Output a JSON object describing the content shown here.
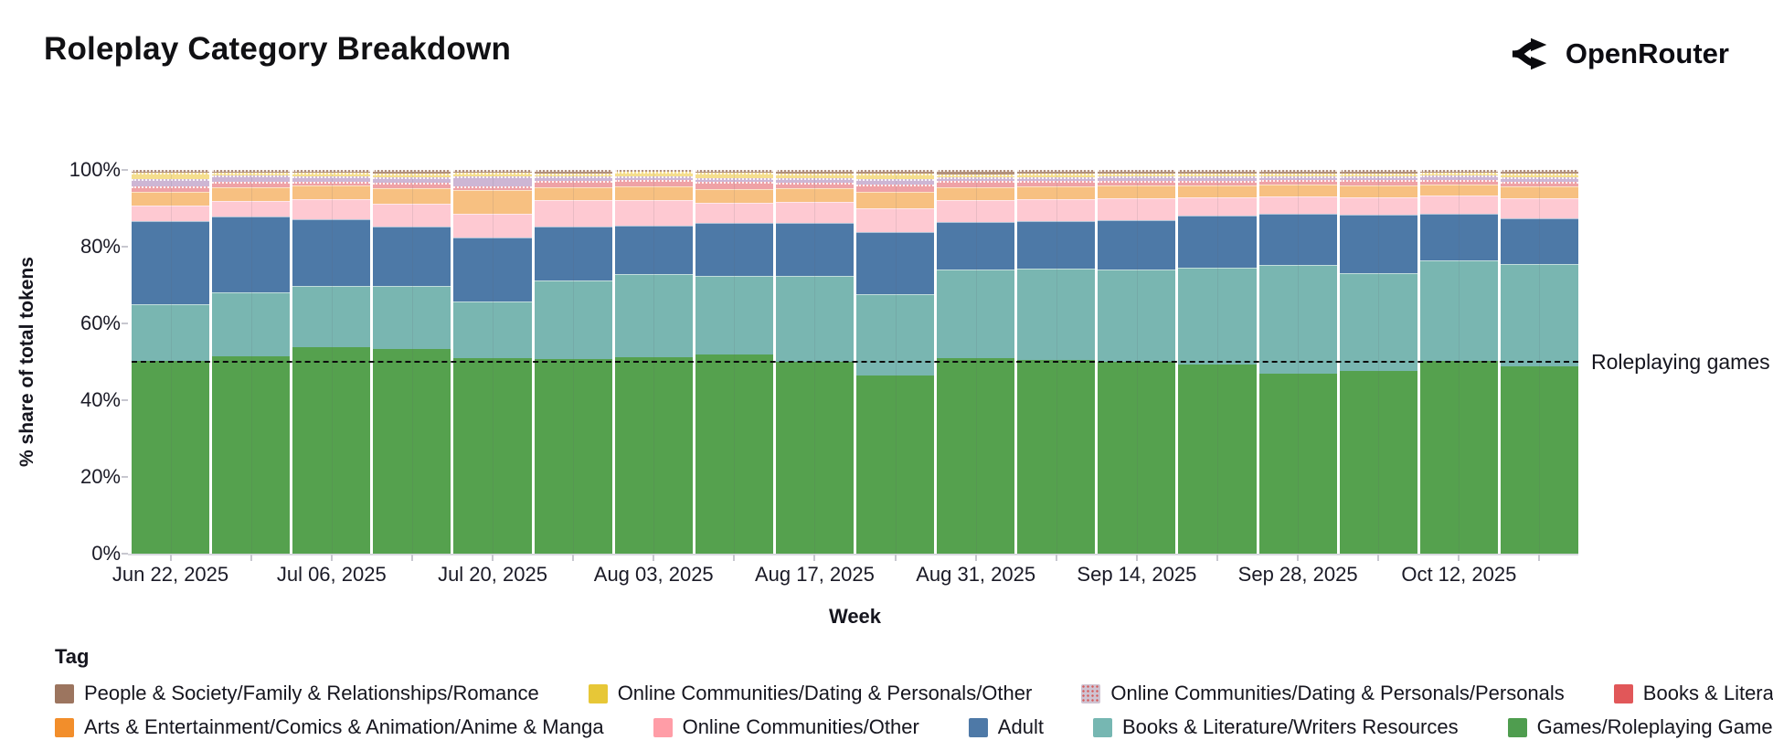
{
  "header": {
    "title": "Roleplay Category Breakdown",
    "brand": "OpenRouter"
  },
  "chart_data": {
    "type": "bar",
    "subtype": "100%-stacked-weekly",
    "title": "Roleplay Category Breakdown",
    "xlabel": "Week",
    "ylabel": "% share of total tokens",
    "ylim": [
      0,
      100
    ],
    "y_ticks": [
      "0%",
      "20%",
      "40%",
      "60%",
      "80%",
      "100%"
    ],
    "x": [
      "Jun 22, 2025",
      "Jun 29, 2025",
      "Jul 06, 2025",
      "Jul 13, 2025",
      "Jul 20, 2025",
      "Jul 27, 2025",
      "Aug 03, 2025",
      "Aug 10, 2025",
      "Aug 17, 2025",
      "Aug 24, 2025",
      "Aug 31, 2025",
      "Sep 07, 2025",
      "Sep 14, 2025",
      "Sep 21, 2025",
      "Sep 28, 2025",
      "Oct 05, 2025",
      "Oct 12, 2025",
      "Oct 19, 2025"
    ],
    "x_tick_labels": [
      "Jun 22, 2025",
      "Jul 06, 2025",
      "Jul 20, 2025",
      "Aug 03, 2025",
      "Aug 17, 2025",
      "Aug 31, 2025",
      "Sep 14, 2025",
      "Sep 28, 2025",
      "Oct 12, 2025"
    ],
    "x_tick_step": 2,
    "grid": "off",
    "legend_position": "bottom",
    "legend_title": "Tag",
    "annotation": {
      "label": "Roleplaying games",
      "y": 50,
      "style": "dashed-black-line"
    },
    "series": [
      {
        "name": "Games/Roleplaying Games",
        "color": "#55a14e",
        "values": [
          50.2,
          51.5,
          53.8,
          53.3,
          51.0,
          50.7,
          51.2,
          51.8,
          50.0,
          46.5,
          51.0,
          50.5,
          50.0,
          49.3,
          46.9,
          47.6,
          50.2,
          48.8
        ]
      },
      {
        "name": "Books & Literature/Writers Resources",
        "color": "#79b6b1",
        "values": [
          14.8,
          16.5,
          16.0,
          16.5,
          14.7,
          20.5,
          21.7,
          20.6,
          22.3,
          21.1,
          23.0,
          23.8,
          24.0,
          25.2,
          28.3,
          25.5,
          26.2,
          26.7
        ]
      },
      {
        "name": "Adult",
        "color": "#4d79a7",
        "values": [
          21.7,
          19.9,
          17.3,
          15.4,
          16.7,
          14.0,
          12.6,
          13.8,
          13.9,
          16.2,
          12.4,
          12.4,
          12.9,
          13.6,
          13.4,
          15.2,
          12.2,
          11.9
        ]
      },
      {
        "name": "Online Communities/Other",
        "color": "#fec9d2",
        "values": [
          4.0,
          4.0,
          5.3,
          6.0,
          6.2,
          6.9,
          6.6,
          5.2,
          5.5,
          6.2,
          5.7,
          5.7,
          5.7,
          4.8,
          4.5,
          4.6,
          4.7,
          5.2
        ]
      },
      {
        "name": "Arts & Entertainment/Comics & Animation/Anime & Manga",
        "color": "#f7c081",
        "values": [
          3.6,
          3.6,
          3.6,
          4.0,
          6.2,
          3.4,
          3.6,
          3.6,
          3.5,
          4.3,
          3.4,
          3.3,
          3.3,
          3.1,
          3.1,
          3.1,
          2.9,
          3.1
        ]
      },
      {
        "name": "Books & Literature/Fan Fiction",
        "color": "#efa2a6",
        "values": [
          1.4,
          1.4,
          0.9,
          1.5,
          0.9,
          1.6,
          1.7,
          1.9,
          1.5,
          1.9,
          1.6,
          1.4,
          1.2,
          1.2,
          1.2,
          1.4,
          1.2,
          1.2
        ]
      },
      {
        "name": "Online Communities/Dating & Personals/Personals",
        "color": "#cdb6d4",
        "values": [
          1.9,
          1.6,
          1.4,
          1.4,
          2.6,
          1.2,
          0.9,
          1.0,
          1.2,
          1.4,
          1.0,
          1.0,
          1.2,
          1.1,
          0.9,
          0.9,
          1.2,
          1.2
        ]
      },
      {
        "name": "Online Communities/Dating & Personals/Other",
        "color": "#f5de8e",
        "values": [
          1.7,
          0.9,
          0.9,
          0.9,
          0.9,
          0.7,
          1.2,
          1.3,
          1.1,
          1.4,
          0.8,
          0.9,
          0.7,
          0.7,
          0.7,
          0.7,
          0.7,
          0.9
        ]
      },
      {
        "name": "People & Society/Family & Relationships/Romance",
        "color": "#b2907c",
        "values": [
          0.7,
          0.6,
          0.8,
          1.0,
          0.8,
          1.0,
          0.5,
          0.8,
          1.0,
          1.0,
          1.1,
          1.0,
          1.0,
          1.0,
          1.0,
          1.0,
          0.7,
          1.0
        ]
      }
    ],
    "legend_rows": [
      [
        {
          "label": "People & Society/Family & Relationships/Romance",
          "color": "#9c755f",
          "pattern": "solid"
        },
        {
          "label": "Online Communities/Dating & Personals/Other",
          "color": "#e7c737",
          "pattern": "solid"
        },
        {
          "label": "Online Communities/Dating & Personals/Personals",
          "color": "#cfc3d2",
          "pattern": "dotted"
        },
        {
          "label": "Books & Literature/Fan Fiction",
          "color": "#e15759",
          "pattern": "solid"
        }
      ],
      [
        {
          "label": "Arts & Entertainment/Comics & Animation/Anime & Manga",
          "color": "#f28e2b",
          "pattern": "solid"
        },
        {
          "label": "Online Communities/Other",
          "color": "#ff9da7",
          "pattern": "solid"
        },
        {
          "label": "Adult",
          "color": "#4e79a7",
          "pattern": "solid"
        },
        {
          "label": "Books & Literature/Writers Resources",
          "color": "#76b7b2",
          "pattern": "solid"
        },
        {
          "label": "Games/Roleplaying Games",
          "color": "#4f9d4f",
          "pattern": "solid"
        }
      ]
    ]
  }
}
